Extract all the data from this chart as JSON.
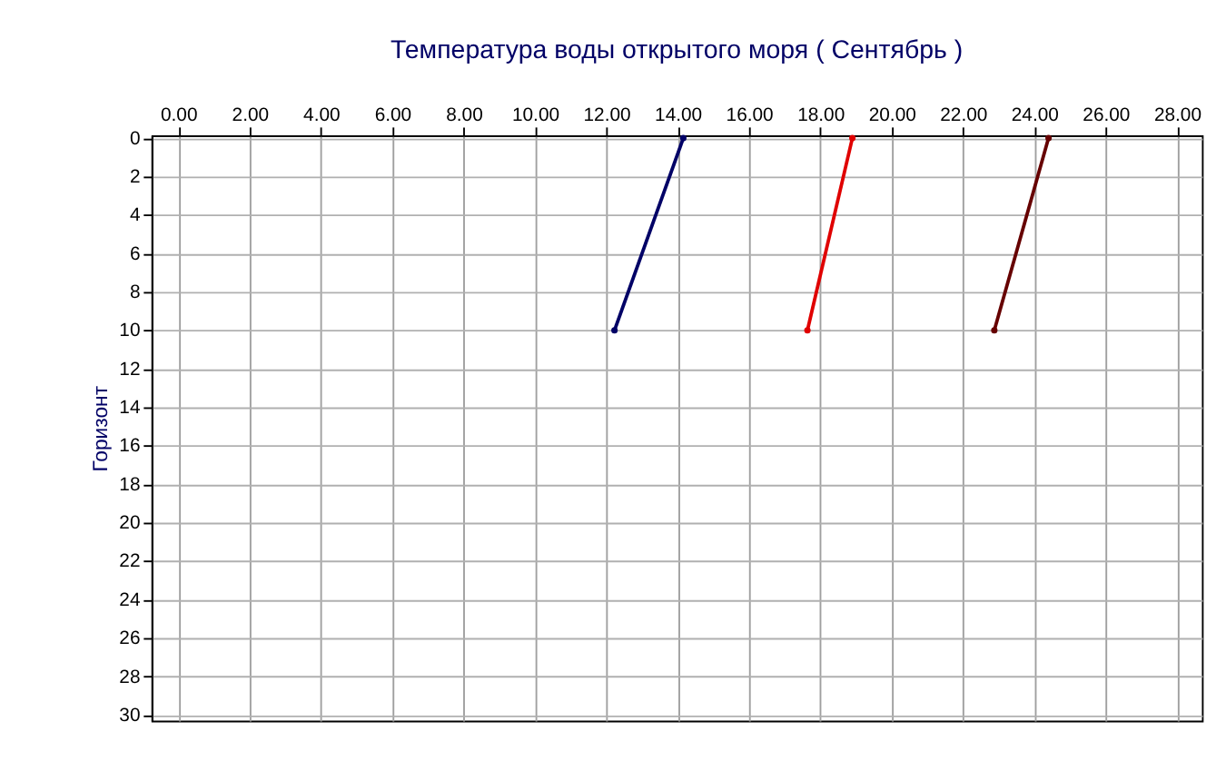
{
  "chart_data": {
    "type": "line",
    "title": "Температура воды открытого моря     ( Сентябрь )",
    "ylabel": "Горизонт",
    "series": [
      {
        "color": "#000066",
        "x": [
          14.16,
          12.23
        ],
        "values": [
          0,
          10
        ]
      },
      {
        "color": "#e00000",
        "x": [
          18.9,
          17.64
        ],
        "values": [
          0,
          10
        ]
      },
      {
        "color": "#660000",
        "x": [
          24.4,
          22.88
        ],
        "values": [
          0,
          10
        ]
      }
    ],
    "xlim": [
      -0.75,
      28.7
    ],
    "xticks": [
      {
        "value": 0,
        "label": "0.00"
      },
      {
        "value": 2,
        "label": "2.00"
      },
      {
        "value": 4,
        "label": "4.00"
      },
      {
        "value": 6,
        "label": "6.00"
      },
      {
        "value": 8,
        "label": "8.00"
      },
      {
        "value": 10,
        "label": "10.00"
      },
      {
        "value": 12,
        "label": "12.00"
      },
      {
        "value": 14,
        "label": "14.00"
      },
      {
        "value": 16,
        "label": "16.00"
      },
      {
        "value": 18,
        "label": "18.00"
      },
      {
        "value": 20,
        "label": "20.00"
      },
      {
        "value": 22,
        "label": "22.00"
      },
      {
        "value": 24,
        "label": "24.00"
      },
      {
        "value": 26,
        "label": "26.00"
      },
      {
        "value": 28,
        "label": "28.00"
      }
    ],
    "ylim": [
      30.3,
      -0.15
    ],
    "yticks": [
      0,
      2,
      4,
      6,
      8,
      10,
      12,
      14,
      16,
      18,
      20,
      22,
      24,
      26,
      28,
      30
    ],
    "grid": true,
    "legend": false,
    "marker": "circle",
    "line_style": "solid"
  }
}
